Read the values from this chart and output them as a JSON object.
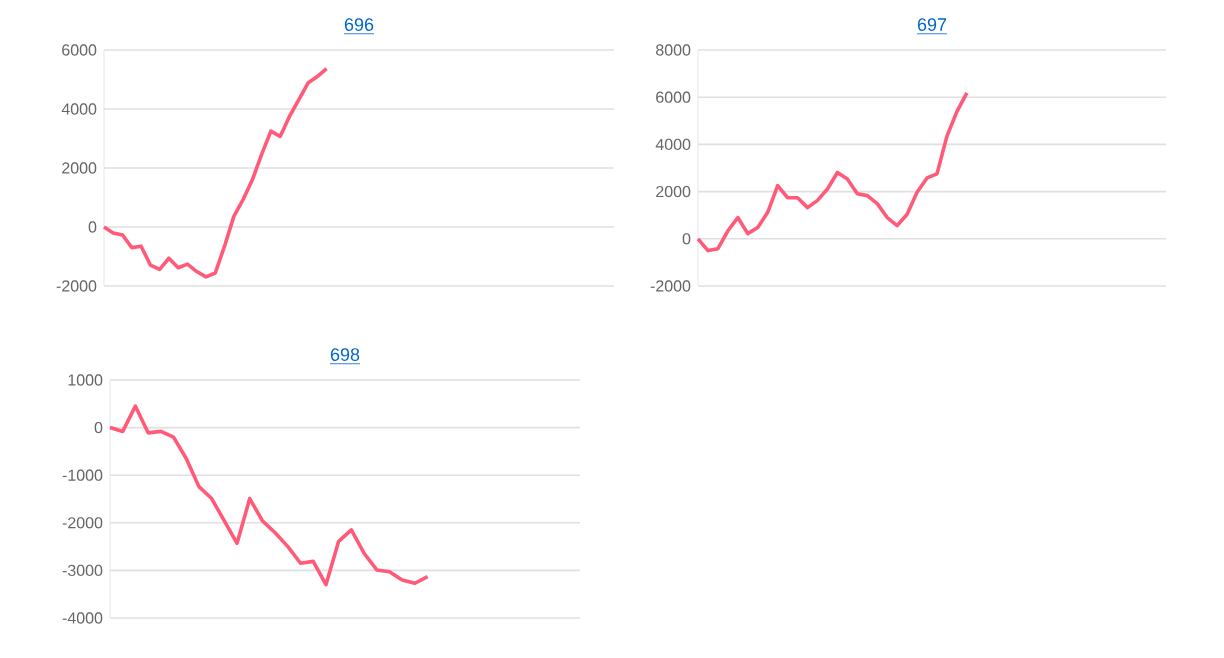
{
  "chart_data": [
    {
      "type": "line",
      "title": "696",
      "color": "#ff5a78",
      "grid": "y",
      "tick_labels": "y",
      "ylim": [
        -2000,
        6000
      ],
      "yticks": [
        -2000,
        0,
        2000,
        4000,
        6000
      ],
      "categories": [
        null,
        null,
        null,
        null,
        null,
        null,
        null,
        null,
        null,
        null,
        null,
        null,
        null,
        null,
        null,
        null,
        null,
        null,
        null,
        null,
        null,
        null,
        null,
        null,
        null,
        null,
        null,
        null,
        null,
        null,
        null,
        null,
        null,
        null,
        null,
        null,
        null,
        null,
        null,
        null,
        null,
        null,
        null,
        null,
        null,
        null,
        null,
        null,
        null,
        null,
        null,
        null,
        null,
        null,
        null,
        null
      ],
      "values": [
        0,
        -200,
        -270,
        -700,
        -650,
        -1290,
        -1440,
        -1060,
        -1380,
        -1260,
        -1510,
        -1690,
        -1560,
        -650,
        360,
        930,
        1600,
        2460,
        3250,
        3070,
        3750,
        4310,
        4880,
        5100,
        5370,
        null,
        null,
        null,
        null,
        null,
        null,
        null,
        null,
        null,
        null,
        null,
        null,
        null,
        null,
        null,
        null,
        null,
        null,
        null,
        null,
        null,
        null,
        null,
        null,
        null,
        null,
        null,
        null,
        null,
        null,
        null
      ]
    },
    {
      "type": "line",
      "title": "697",
      "color": "#ff5a78",
      "grid": "y",
      "tick_labels": "y",
      "ylim": [
        -2000,
        8000
      ],
      "yticks": [
        -2000,
        0,
        2000,
        4000,
        6000,
        8000
      ],
      "categories": [
        null,
        null,
        null,
        null,
        null,
        null,
        null,
        null,
        null,
        null,
        null,
        null,
        null,
        null,
        null,
        null,
        null,
        null,
        null,
        null,
        null,
        null,
        null,
        null,
        null,
        null,
        null,
        null,
        null,
        null,
        null,
        null,
        null,
        null,
        null,
        null,
        null,
        null,
        null,
        null,
        null,
        null,
        null,
        null,
        null,
        null,
        null,
        null
      ],
      "values": [
        0,
        -500,
        -420,
        340,
        900,
        220,
        480,
        1120,
        2250,
        1740,
        1740,
        1320,
        1630,
        2110,
        2810,
        2530,
        1910,
        1830,
        1490,
        900,
        560,
        1040,
        1970,
        2580,
        2750,
        4350,
        5390,
        6180,
        null,
        null,
        null,
        null,
        null,
        null,
        null,
        null,
        null,
        null,
        null,
        null,
        null,
        null,
        null,
        null,
        null,
        null,
        null,
        null
      ]
    },
    {
      "type": "line",
      "title": "698",
      "color": "#ff5a78",
      "grid": "y",
      "tick_labels": "y",
      "ylim": [
        -4000,
        1000
      ],
      "yticks": [
        -4000,
        -3000,
        -2000,
        -1000,
        0,
        1000
      ],
      "categories": [
        null,
        null,
        null,
        null,
        null,
        null,
        null,
        null,
        null,
        null,
        null,
        null,
        null,
        null,
        null,
        null,
        null,
        null,
        null,
        null,
        null,
        null,
        null,
        null,
        null,
        null,
        null,
        null,
        null,
        null,
        null,
        null,
        null,
        null,
        null,
        null,
        null,
        null
      ],
      "values": [
        0,
        -80,
        450,
        -110,
        -80,
        -200,
        -650,
        -1240,
        -1490,
        -1960,
        -2430,
        -1490,
        -1960,
        -2210,
        -2500,
        -2850,
        -2810,
        -3300,
        -2390,
        -2150,
        -2640,
        -2990,
        -3030,
        -3200,
        -3270,
        -3130,
        null,
        null,
        null,
        null,
        null,
        null,
        null,
        null,
        null,
        null,
        null,
        null
      ]
    }
  ]
}
